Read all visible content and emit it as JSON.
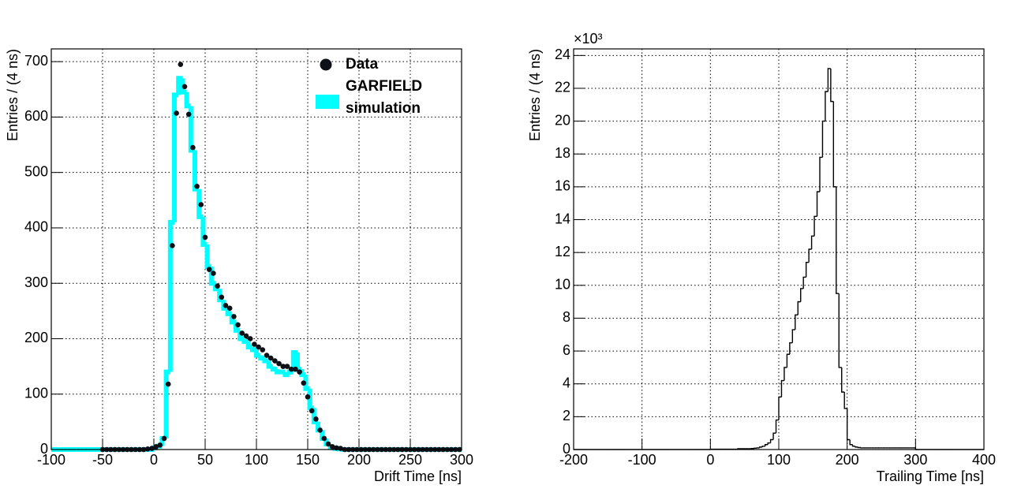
{
  "chart_data": [
    {
      "type": "histogram",
      "grid": true,
      "legend": "top right",
      "y_label": "Entries / (4 ns)",
      "x_label": "Drift Time [ns]",
      "xlim": [
        -100,
        300
      ],
      "xticks": [
        -100,
        -50,
        0,
        50,
        100,
        150,
        200,
        250,
        300
      ],
      "ylim": [
        0,
        723
      ],
      "yticks": [
        0,
        100,
        200,
        300,
        400,
        500,
        600,
        700
      ],
      "bins": [
        -100,
        -96,
        -92,
        -88,
        -84,
        -80,
        -76,
        -72,
        -68,
        -64,
        -60,
        -56,
        -52,
        -48,
        -44,
        -40,
        -36,
        -32,
        -28,
        -24,
        -20,
        -16,
        -12,
        -8,
        -4,
        0,
        4,
        8,
        12,
        16,
        20,
        24,
        28,
        32,
        36,
        40,
        44,
        48,
        52,
        56,
        60,
        64,
        68,
        72,
        76,
        80,
        84,
        88,
        92,
        96,
        100,
        104,
        108,
        112,
        116,
        120,
        124,
        128,
        132,
        136,
        140,
        144,
        148,
        152,
        156,
        160,
        164,
        168,
        172,
        176,
        180,
        184,
        188,
        192,
        196,
        200,
        204,
        208,
        212,
        216,
        220,
        224,
        228,
        232,
        236,
        240,
        244,
        248,
        252,
        256,
        260,
        264,
        268,
        272,
        276,
        280,
        284,
        288,
        292,
        296,
        300
      ],
      "series": [
        {
          "name": "Data",
          "type": "scatter",
          "color": "#0d1117",
          "x": [
            -50,
            -46,
            -42,
            -38,
            -34,
            -30,
            -26,
            -22,
            -18,
            -14,
            -10,
            -6,
            -2,
            2,
            6,
            10,
            14,
            18,
            22,
            26,
            30,
            34,
            38,
            42,
            46,
            50,
            54,
            58,
            62,
            66,
            70,
            74,
            78,
            82,
            86,
            90,
            94,
            98,
            102,
            106,
            110,
            114,
            118,
            122,
            126,
            130,
            134,
            138,
            142,
            146,
            150,
            154,
            158,
            162,
            166,
            170,
            174,
            178,
            182,
            186,
            190,
            194,
            198,
            202,
            206,
            210,
            214,
            218,
            222,
            226,
            230,
            234,
            238,
            242,
            246,
            250,
            254,
            258,
            262,
            266,
            270,
            274,
            278,
            282,
            286,
            290,
            294,
            298
          ],
          "values": [
            0,
            0,
            0,
            0,
            0,
            0,
            0,
            0,
            0,
            0,
            0,
            1,
            2,
            5,
            8,
            20,
            118,
            368,
            607,
            695,
            655,
            605,
            545,
            475,
            442,
            383,
            325,
            318,
            295,
            275,
            260,
            255,
            240,
            225,
            210,
            205,
            200,
            190,
            185,
            180,
            170,
            165,
            160,
            155,
            150,
            150,
            145,
            145,
            140,
            120,
            95,
            70,
            55,
            35,
            20,
            10,
            5,
            3,
            2,
            0,
            0,
            0,
            0,
            0,
            0,
            0,
            0,
            0,
            0,
            0,
            0,
            0,
            0,
            0,
            0,
            0,
            0,
            0,
            0,
            0,
            0,
            0,
            0,
            0,
            0,
            0,
            0,
            0
          ]
        },
        {
          "name": "GARFIELD simulation",
          "type": "histogram",
          "color": "#00ffff",
          "values": [
            0,
            0,
            0,
            0,
            0,
            0,
            0,
            0,
            0,
            0,
            0,
            0,
            0,
            0,
            0,
            0,
            0,
            0,
            0,
            0,
            0,
            0,
            0,
            0,
            0,
            3,
            6,
            20,
            140,
            410,
            640,
            670,
            645,
            620,
            540,
            470,
            420,
            370,
            330,
            300,
            290,
            270,
            255,
            245,
            230,
            215,
            200,
            195,
            185,
            180,
            170,
            165,
            160,
            150,
            145,
            140,
            140,
            135,
            140,
            175,
            145,
            135,
            110,
            75,
            50,
            35,
            20,
            10,
            5,
            2,
            1,
            0,
            0,
            0,
            0,
            0,
            0,
            0,
            0,
            0,
            0,
            0,
            0,
            0,
            0,
            0,
            0,
            0,
            0,
            0,
            0,
            0,
            0,
            0,
            0,
            0,
            0,
            0,
            0,
            0
          ]
        }
      ]
    },
    {
      "type": "histogram",
      "grid": true,
      "y_label": "Entries / (4 ns)",
      "x_label": "Trailing Time [ns]",
      "y_multiplier": "×10³",
      "xlim": [
        -200,
        400
      ],
      "xticks": [
        -200,
        -100,
        0,
        100,
        200,
        300,
        400
      ],
      "ylim": [
        0,
        24.4
      ],
      "yticks": [
        0,
        2,
        4,
        6,
        8,
        10,
        12,
        14,
        16,
        18,
        20,
        22,
        24
      ],
      "bins": [
        -200,
        -196,
        -192,
        -188,
        -184,
        -180,
        -176,
        -172,
        -168,
        -164,
        -160,
        -156,
        -152,
        -148,
        -144,
        -140,
        -136,
        -132,
        -128,
        -124,
        -120,
        -116,
        -112,
        -108,
        -104,
        -100,
        -96,
        -92,
        -88,
        -84,
        -80,
        -76,
        -72,
        -68,
        -64,
        -60,
        -56,
        -52,
        -48,
        -44,
        -40,
        -36,
        -32,
        -28,
        -24,
        -20,
        -16,
        -12,
        -8,
        -4,
        0,
        4,
        8,
        12,
        16,
        20,
        24,
        28,
        32,
        36,
        40,
        44,
        48,
        52,
        56,
        60,
        64,
        68,
        72,
        76,
        80,
        84,
        88,
        92,
        96,
        100,
        104,
        108,
        112,
        116,
        120,
        124,
        128,
        132,
        136,
        140,
        144,
        148,
        152,
        156,
        160,
        164,
        168,
        172,
        176,
        180,
        184,
        188,
        192,
        196,
        200,
        204,
        208,
        212,
        216,
        220,
        224,
        228,
        232,
        236,
        240,
        244,
        248,
        252,
        256,
        260,
        264,
        268,
        272,
        276,
        280,
        284,
        288,
        292,
        296,
        300,
        304,
        308,
        312,
        316,
        320,
        324,
        328,
        332,
        336,
        340,
        344,
        348,
        352,
        356,
        360,
        364,
        368,
        372,
        376,
        380,
        384,
        388,
        392,
        396,
        400
      ],
      "series": [
        {
          "type": "histogram",
          "color": "#000000",
          "values": [
            0,
            0,
            0,
            0,
            0,
            0,
            0,
            0,
            0,
            0,
            0,
            0,
            0,
            0,
            0,
            0,
            0,
            0,
            0,
            0,
            0,
            0,
            0,
            0,
            0,
            0,
            0,
            0,
            0,
            0,
            0,
            0,
            0,
            0,
            0,
            0,
            0,
            0,
            0,
            0,
            0,
            0,
            0,
            0,
            0,
            0,
            0,
            0,
            0,
            0,
            0.02,
            0.02,
            0.02,
            0.02,
            0.02,
            0.02,
            0.02,
            0.02,
            0.02,
            0.02,
            0.05,
            0.05,
            0.05,
            0.05,
            0.05,
            0.06,
            0.08,
            0.1,
            0.15,
            0.2,
            0.3,
            0.4,
            0.6,
            1.0,
            1.8,
            3.2,
            4.2,
            5.0,
            5.8,
            6.5,
            7.3,
            8.2,
            9.0,
            9.8,
            10.5,
            11.4,
            12.2,
            13.0,
            14.2,
            15.7,
            17.8,
            20.0,
            21.8,
            23.2,
            21.2,
            16.0,
            9.5,
            5.0,
            3.5,
            2.5,
            0.6,
            0.3,
            0.2,
            0.15,
            0.12,
            0.1,
            0.1,
            0.1,
            0.1,
            0.1,
            0.1,
            0.1,
            0.1,
            0.1,
            0.1,
            0.1,
            0.1,
            0.1,
            0.1,
            0.1,
            0.1,
            0.1,
            0.1,
            0.1,
            0.1,
            0,
            0,
            0,
            0,
            0,
            0,
            0,
            0,
            0,
            0,
            0,
            0,
            0,
            0,
            0,
            0,
            0,
            0,
            0,
            0,
            0,
            0,
            0,
            0,
            0
          ]
        }
      ]
    }
  ]
}
